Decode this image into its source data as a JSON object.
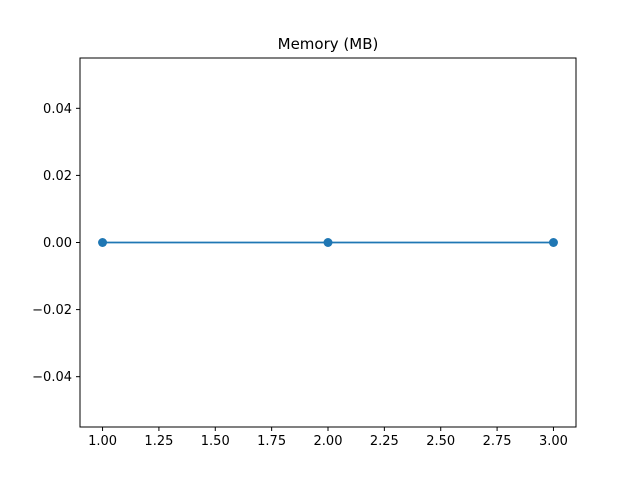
{
  "chart_data": {
    "type": "line",
    "title": "Memory (MB)",
    "xlabel": "",
    "ylabel": "",
    "x": [
      1,
      2,
      3
    ],
    "series": [
      {
        "values": [
          0,
          0,
          0
        ],
        "color": "#1f77b4",
        "marker": "circle"
      }
    ],
    "xlim": [
      0.9,
      3.1
    ],
    "ylim": [
      -0.055,
      0.055
    ],
    "xticks": [
      1.0,
      1.25,
      1.5,
      1.75,
      2.0,
      2.25,
      2.5,
      2.75,
      3.0
    ],
    "xtick_labels": [
      "1.00",
      "1.25",
      "1.50",
      "1.75",
      "2.00",
      "2.25",
      "2.50",
      "2.75",
      "3.00"
    ],
    "yticks": [
      -0.04,
      -0.02,
      0.0,
      0.02,
      0.04
    ],
    "ytick_labels": [
      "−0.04",
      "−0.02",
      "0.00",
      "0.02",
      "0.04"
    ],
    "grid": false,
    "legend": "none"
  }
}
